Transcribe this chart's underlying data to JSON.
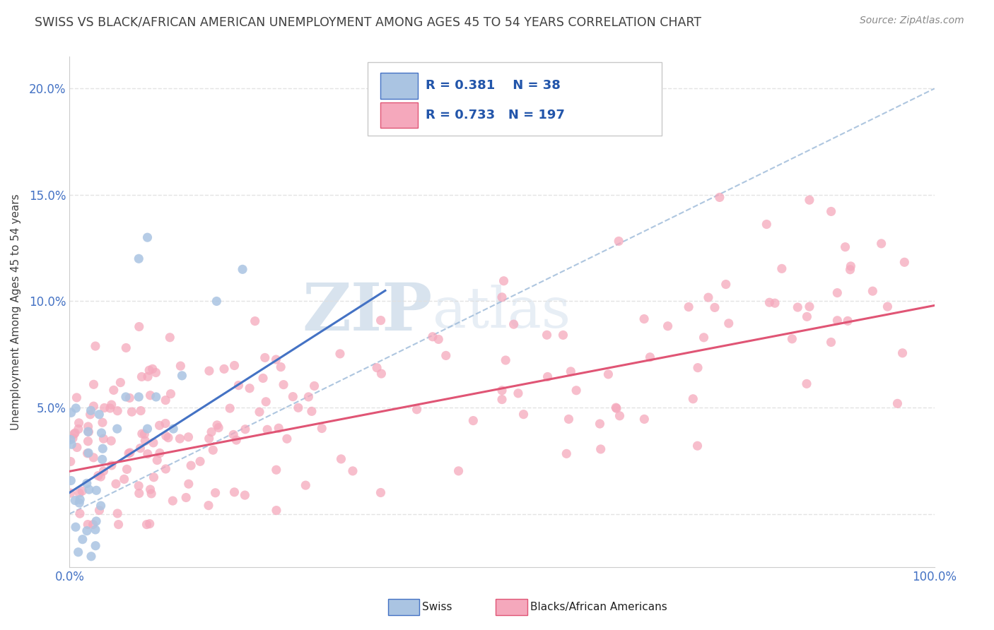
{
  "title": "SWISS VS BLACK/AFRICAN AMERICAN UNEMPLOYMENT AMONG AGES 45 TO 54 YEARS CORRELATION CHART",
  "source": "Source: ZipAtlas.com",
  "ylabel": "Unemployment Among Ages 45 to 54 years",
  "xlim": [
    0,
    1.0
  ],
  "ylim": [
    -0.025,
    0.215
  ],
  "xticks": [
    0.0,
    0.1,
    0.2,
    0.3,
    0.4,
    0.5,
    0.6,
    0.7,
    0.8,
    0.9,
    1.0
  ],
  "xtick_labels": [
    "0.0%",
    "",
    "",
    "",
    "",
    "",
    "",
    "",
    "",
    "",
    "100.0%"
  ],
  "yticks": [
    0.0,
    0.05,
    0.1,
    0.15,
    0.2
  ],
  "ytick_labels": [
    "",
    "5.0%",
    "10.0%",
    "15.0%",
    "20.0%"
  ],
  "swiss_color": "#aac4e2",
  "pink_color": "#f5a8bc",
  "swiss_line_color": "#4472c4",
  "pink_line_color": "#e05575",
  "swiss_R": 0.381,
  "swiss_N": 38,
  "pink_R": 0.733,
  "pink_N": 197,
  "legend_label_swiss": "Swiss",
  "legend_label_pink": "Blacks/African Americans",
  "background_color": "#ffffff",
  "grid_color": "#e0e0e0",
  "title_color": "#404040",
  "dashed_line_color": "#9ab8d8",
  "watermark_color": "#c8d8ea",
  "swiss_seed": 12,
  "pink_seed": 7
}
